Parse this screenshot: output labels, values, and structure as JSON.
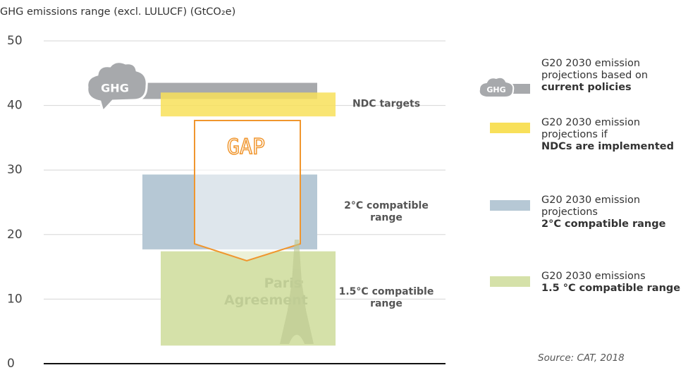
{
  "chart_data": {
    "type": "range-bar",
    "title": "GHG emissions range (excl. LULUCF) (GtCO₂e)",
    "ylim": [
      0,
      50
    ],
    "yticks": [
      0,
      10,
      20,
      30,
      40,
      50
    ],
    "grid": true,
    "series": [
      {
        "name": "G20 2030 emission projections based on",
        "name_bold": "current policies",
        "icon": "GHG",
        "color": "#a7a9ac",
        "values": [
          41,
          43.5
        ]
      },
      {
        "name": "G20 2030 emission projections if",
        "name_bold": "NDCs are implemented",
        "label": "NDC targets",
        "color": "#f8e05a",
        "values": [
          38.3,
          42
        ]
      },
      {
        "name": "G20 2030 emission projections",
        "name_bold": "2°C compatible range",
        "label": "2°C compatible range",
        "color": "#b6c8d5",
        "values": [
          17.7,
          29.3
        ]
      },
      {
        "name": "G20 2030 emissions",
        "name_bold": "1.5 °C compatible range",
        "label": "1.5°C compatible range",
        "color": "#d5e1a9",
        "values": [
          2.8,
          17.4
        ]
      }
    ],
    "gap_label": "GAP",
    "watermark": "Paris Agreement",
    "source": "Source: CAT, 2018"
  }
}
